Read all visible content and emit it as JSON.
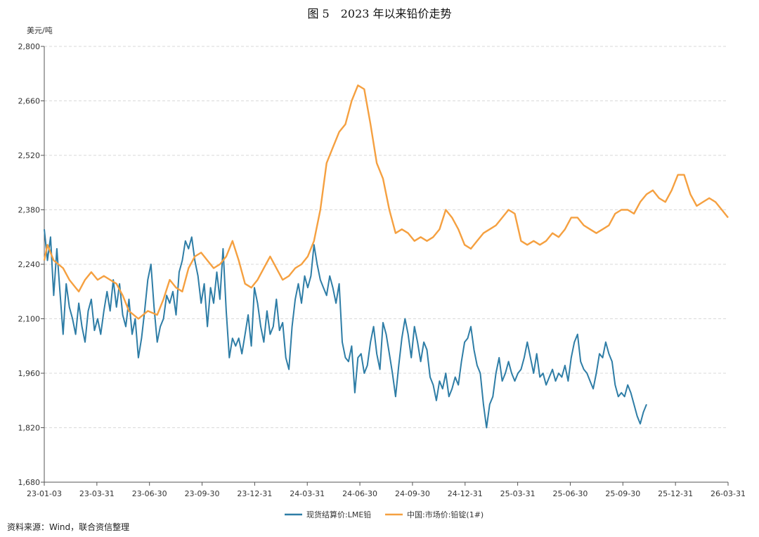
{
  "title": "图 5　2023 年以来铅价走势",
  "source": "资料来源：Wind，联合资信整理",
  "colors": {
    "lme": "#2e7da6",
    "china": "#f5a040",
    "grid": "#d9d9d9",
    "axis": "#555555"
  },
  "chart_data": {
    "type": "line",
    "unit_label": "美元/吨",
    "ylim": [
      1680,
      2800
    ],
    "yticks": [
      1680,
      1820,
      1960,
      2100,
      2240,
      2380,
      2520,
      2660,
      2800
    ],
    "ytick_labels": [
      "1,680",
      "1,820",
      "1,960",
      "2,100",
      "2,240",
      "2,380",
      "2,520",
      "2,660",
      "2,800"
    ],
    "xticks": [
      "23-01-03",
      "23-03-31",
      "23-06-30",
      "23-09-30",
      "23-12-31",
      "24-03-31",
      "24-06-30",
      "24-09-30",
      "24-12-31",
      "25-03-31",
      "25-06-30",
      "25-09-30",
      "25-12-31",
      "26-03-31"
    ],
    "grid": "horizontal dashed",
    "legend_position": "bottom-center",
    "series": [
      {
        "name": "现货结算价:LME铅",
        "color": "#2e7da6",
        "points": [
          [
            0,
            2330
          ],
          [
            1,
            2250
          ],
          [
            2,
            2310
          ],
          [
            3,
            2160
          ],
          [
            4,
            2280
          ],
          [
            5,
            2170
          ],
          [
            6,
            2060
          ],
          [
            7,
            2190
          ],
          [
            8,
            2130
          ],
          [
            9,
            2100
          ],
          [
            10,
            2060
          ],
          [
            11,
            2140
          ],
          [
            12,
            2080
          ],
          [
            13,
            2040
          ],
          [
            14,
            2120
          ],
          [
            15,
            2150
          ],
          [
            16,
            2070
          ],
          [
            17,
            2100
          ],
          [
            18,
            2060
          ],
          [
            19,
            2120
          ],
          [
            20,
            2170
          ],
          [
            21,
            2120
          ],
          [
            22,
            2200
          ],
          [
            23,
            2130
          ],
          [
            24,
            2190
          ],
          [
            25,
            2110
          ],
          [
            26,
            2080
          ],
          [
            27,
            2150
          ],
          [
            28,
            2060
          ],
          [
            29,
            2100
          ],
          [
            30,
            2000
          ],
          [
            31,
            2050
          ],
          [
            32,
            2120
          ],
          [
            33,
            2200
          ],
          [
            34,
            2240
          ],
          [
            35,
            2130
          ],
          [
            36,
            2040
          ],
          [
            37,
            2080
          ],
          [
            38,
            2100
          ],
          [
            39,
            2160
          ],
          [
            40,
            2140
          ],
          [
            41,
            2170
          ],
          [
            42,
            2110
          ],
          [
            43,
            2220
          ],
          [
            44,
            2250
          ],
          [
            45,
            2300
          ],
          [
            46,
            2280
          ],
          [
            47,
            2310
          ],
          [
            48,
            2250
          ],
          [
            49,
            2210
          ],
          [
            50,
            2140
          ],
          [
            51,
            2190
          ],
          [
            52,
            2080
          ],
          [
            53,
            2180
          ],
          [
            54,
            2140
          ],
          [
            55,
            2220
          ],
          [
            56,
            2150
          ],
          [
            57,
            2280
          ],
          [
            58,
            2120
          ],
          [
            59,
            2000
          ],
          [
            60,
            2050
          ],
          [
            61,
            2030
          ],
          [
            62,
            2050
          ],
          [
            63,
            2010
          ],
          [
            64,
            2060
          ],
          [
            65,
            2110
          ],
          [
            66,
            2030
          ],
          [
            67,
            2180
          ],
          [
            68,
            2140
          ],
          [
            69,
            2080
          ],
          [
            70,
            2040
          ],
          [
            71,
            2120
          ],
          [
            72,
            2060
          ],
          [
            73,
            2080
          ],
          [
            74,
            2150
          ],
          [
            75,
            2070
          ],
          [
            76,
            2090
          ],
          [
            77,
            2000
          ],
          [
            78,
            1970
          ],
          [
            79,
            2080
          ],
          [
            80,
            2150
          ],
          [
            81,
            2190
          ],
          [
            82,
            2140
          ],
          [
            83,
            2210
          ],
          [
            84,
            2180
          ],
          [
            85,
            2210
          ],
          [
            86,
            2290
          ],
          [
            87,
            2240
          ],
          [
            88,
            2200
          ],
          [
            89,
            2180
          ],
          [
            90,
            2160
          ],
          [
            91,
            2210
          ],
          [
            92,
            2180
          ],
          [
            93,
            2140
          ],
          [
            94,
            2190
          ],
          [
            95,
            2040
          ],
          [
            96,
            2000
          ],
          [
            97,
            1990
          ],
          [
            98,
            2030
          ],
          [
            99,
            1910
          ],
          [
            100,
            2000
          ],
          [
            101,
            2010
          ],
          [
            102,
            1960
          ],
          [
            103,
            1980
          ],
          [
            104,
            2040
          ],
          [
            105,
            2080
          ],
          [
            106,
            2010
          ],
          [
            107,
            1970
          ],
          [
            108,
            2090
          ],
          [
            109,
            2060
          ],
          [
            110,
            2010
          ],
          [
            111,
            1960
          ],
          [
            112,
            1900
          ],
          [
            113,
            1980
          ],
          [
            114,
            2050
          ],
          [
            115,
            2100
          ],
          [
            116,
            2060
          ],
          [
            117,
            2000
          ],
          [
            118,
            2080
          ],
          [
            119,
            2040
          ],
          [
            120,
            1990
          ],
          [
            121,
            2040
          ],
          [
            122,
            2020
          ],
          [
            123,
            1950
          ],
          [
            124,
            1930
          ],
          [
            125,
            1890
          ],
          [
            126,
            1940
          ],
          [
            127,
            1920
          ],
          [
            128,
            1960
          ],
          [
            129,
            1900
          ],
          [
            130,
            1920
          ],
          [
            131,
            1950
          ],
          [
            132,
            1930
          ],
          [
            133,
            1990
          ],
          [
            134,
            2040
          ],
          [
            135,
            2050
          ],
          [
            136,
            2080
          ],
          [
            137,
            2020
          ],
          [
            138,
            1980
          ],
          [
            139,
            1960
          ],
          [
            140,
            1880
          ],
          [
            141,
            1820
          ],
          [
            142,
            1880
          ],
          [
            143,
            1900
          ],
          [
            144,
            1960
          ],
          [
            145,
            2000
          ],
          [
            146,
            1940
          ],
          [
            147,
            1960
          ],
          [
            148,
            1990
          ],
          [
            149,
            1960
          ],
          [
            150,
            1940
          ],
          [
            151,
            1960
          ],
          [
            152,
            1970
          ],
          [
            153,
            2000
          ],
          [
            154,
            2040
          ],
          [
            155,
            2000
          ],
          [
            156,
            1960
          ],
          [
            157,
            2010
          ],
          [
            158,
            1950
          ],
          [
            159,
            1960
          ],
          [
            160,
            1930
          ],
          [
            161,
            1950
          ],
          [
            162,
            1970
          ],
          [
            163,
            1940
          ],
          [
            164,
            1960
          ],
          [
            165,
            1950
          ],
          [
            166,
            1980
          ],
          [
            167,
            1940
          ],
          [
            168,
            2000
          ],
          [
            169,
            2040
          ],
          [
            170,
            2060
          ],
          [
            171,
            1990
          ],
          [
            172,
            1970
          ],
          [
            173,
            1960
          ],
          [
            174,
            1940
          ],
          [
            175,
            1920
          ],
          [
            176,
            1960
          ],
          [
            177,
            2010
          ],
          [
            178,
            2000
          ],
          [
            179,
            2040
          ],
          [
            180,
            2010
          ],
          [
            181,
            1990
          ],
          [
            182,
            1930
          ],
          [
            183,
            1900
          ],
          [
            184,
            1910
          ],
          [
            185,
            1900
          ],
          [
            186,
            1930
          ],
          [
            187,
            1910
          ],
          [
            188,
            1880
          ],
          [
            189,
            1850
          ],
          [
            190,
            1830
          ],
          [
            191,
            1860
          ],
          [
            192,
            1880
          ]
        ]
      },
      {
        "name": "中国:市场价:铅锭(1#)",
        "color": "#f5a040",
        "points": [
          [
            0,
            2250
          ],
          [
            1,
            2290
          ],
          [
            3,
            2250
          ],
          [
            6,
            2230
          ],
          [
            8,
            2200
          ],
          [
            10,
            2180
          ],
          [
            11,
            2170
          ],
          [
            13,
            2200
          ],
          [
            15,
            2220
          ],
          [
            17,
            2200
          ],
          [
            19,
            2210
          ],
          [
            21,
            2200
          ],
          [
            23,
            2190
          ],
          [
            25,
            2160
          ],
          [
            27,
            2120
          ],
          [
            30,
            2100
          ],
          [
            33,
            2120
          ],
          [
            36,
            2110
          ],
          [
            38,
            2150
          ],
          [
            40,
            2200
          ],
          [
            42,
            2180
          ],
          [
            44,
            2170
          ],
          [
            46,
            2230
          ],
          [
            48,
            2260
          ],
          [
            50,
            2270
          ],
          [
            52,
            2250
          ],
          [
            54,
            2230
          ],
          [
            56,
            2240
          ],
          [
            58,
            2260
          ],
          [
            60,
            2300
          ],
          [
            62,
            2250
          ],
          [
            64,
            2190
          ],
          [
            66,
            2180
          ],
          [
            68,
            2200
          ],
          [
            70,
            2230
          ],
          [
            72,
            2260
          ],
          [
            74,
            2230
          ],
          [
            76,
            2200
          ],
          [
            78,
            2210
          ],
          [
            80,
            2230
          ],
          [
            82,
            2240
          ],
          [
            84,
            2260
          ],
          [
            86,
            2300
          ],
          [
            88,
            2380
          ],
          [
            90,
            2500
          ],
          [
            92,
            2540
          ],
          [
            94,
            2580
          ],
          [
            96,
            2600
          ],
          [
            98,
            2660
          ],
          [
            100,
            2700
          ],
          [
            102,
            2690
          ],
          [
            104,
            2600
          ],
          [
            106,
            2500
          ],
          [
            108,
            2460
          ],
          [
            110,
            2380
          ],
          [
            112,
            2320
          ],
          [
            114,
            2330
          ],
          [
            116,
            2320
          ],
          [
            118,
            2300
          ],
          [
            120,
            2310
          ],
          [
            122,
            2300
          ],
          [
            124,
            2310
          ],
          [
            126,
            2330
          ],
          [
            128,
            2380
          ],
          [
            130,
            2360
          ],
          [
            132,
            2330
          ],
          [
            134,
            2290
          ],
          [
            136,
            2280
          ],
          [
            138,
            2300
          ],
          [
            140,
            2320
          ],
          [
            142,
            2330
          ],
          [
            144,
            2340
          ],
          [
            146,
            2360
          ],
          [
            148,
            2380
          ],
          [
            150,
            2370
          ],
          [
            152,
            2300
          ],
          [
            154,
            2290
          ],
          [
            156,
            2300
          ],
          [
            158,
            2290
          ],
          [
            160,
            2300
          ],
          [
            162,
            2320
          ],
          [
            164,
            2310
          ],
          [
            166,
            2330
          ],
          [
            168,
            2360
          ],
          [
            170,
            2360
          ],
          [
            172,
            2340
          ],
          [
            174,
            2330
          ],
          [
            176,
            2320
          ],
          [
            178,
            2330
          ],
          [
            180,
            2340
          ],
          [
            182,
            2370
          ],
          [
            184,
            2380
          ],
          [
            186,
            2380
          ],
          [
            188,
            2370
          ],
          [
            190,
            2400
          ],
          [
            192,
            2420
          ],
          [
            194,
            2430
          ],
          [
            196,
            2410
          ],
          [
            198,
            2400
          ],
          [
            200,
            2430
          ],
          [
            202,
            2470
          ],
          [
            204,
            2470
          ],
          [
            206,
            2420
          ],
          [
            208,
            2390
          ],
          [
            210,
            2400
          ],
          [
            212,
            2410
          ],
          [
            214,
            2400
          ],
          [
            216,
            2380
          ],
          [
            218,
            2360
          ]
        ]
      }
    ]
  }
}
